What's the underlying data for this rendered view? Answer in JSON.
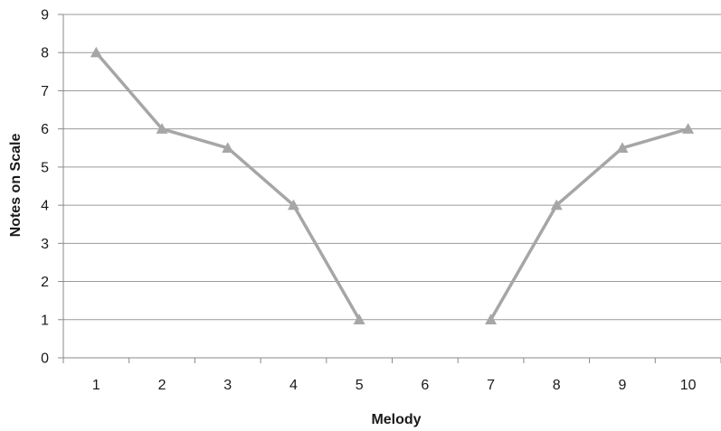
{
  "chart_data": {
    "type": "line",
    "categories": [
      "1",
      "2",
      "3",
      "4",
      "5",
      "6",
      "7",
      "8",
      "9",
      "10"
    ],
    "series": [
      {
        "values": [
          8,
          6,
          5.5,
          4,
          1,
          null,
          1,
          4,
          5.5,
          6
        ]
      }
    ],
    "xlabel": "Melody",
    "ylabel": "Notes on Scale",
    "ylim": [
      0,
      9
    ],
    "yticks": [
      "0",
      "1",
      "2",
      "3",
      "4",
      "5",
      "6",
      "7",
      "8",
      "9"
    ],
    "grid": true,
    "legend": "none",
    "line_color": "#a6a6a6",
    "marker": "triangle"
  }
}
